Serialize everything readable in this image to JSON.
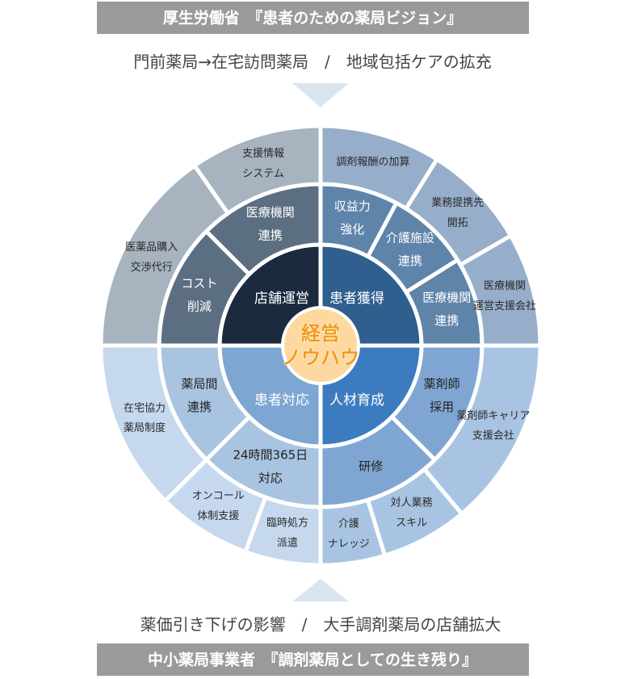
{
  "header": {
    "title": "厚生労働省　『患者のための薬局ビジョン』",
    "subtitle": "門前薬局→在宅訪問薬局　/　地域包括ケアの拡充"
  },
  "center": [
    "経営",
    "ノウハウ"
  ],
  "quadrants": [
    {
      "core": "患者獲得",
      "inner": [
        [
          "収益力",
          "強化"
        ],
        [
          "介護施設",
          "連携"
        ],
        [
          "医療機関",
          "連携"
        ]
      ],
      "outer": [
        [
          "調剤報酬の加算"
        ],
        [
          "業務提携先",
          "開拓"
        ],
        [
          "医療機関",
          "運営支援会社"
        ]
      ]
    },
    {
      "core": "人材育成",
      "inner": [
        [
          "薬剤師",
          "採用"
        ],
        [
          "研修"
        ]
      ],
      "outer": [
        [
          "薬剤師キャリア",
          "支援会社"
        ],
        [
          "対人業務",
          "スキル"
        ],
        [
          "介護",
          "ナレッジ"
        ]
      ]
    },
    {
      "core": "患者対応",
      "inner": [
        [
          "24時間365日",
          "対応"
        ],
        [
          "薬局間",
          "連携"
        ]
      ],
      "outer": [
        [
          "臨時処方",
          "派遣"
        ],
        [
          "オンコール",
          "体制支援"
        ],
        [
          "在宅協力",
          "薬局制度"
        ]
      ]
    },
    {
      "core": "店舗運営",
      "inner": [
        [
          "コスト",
          "削減"
        ],
        [
          "医療機関",
          "連携"
        ]
      ],
      "outer": [
        [
          "医薬品購入",
          "交渉代行"
        ],
        [
          "支援情報",
          "システム"
        ]
      ]
    }
  ],
  "footer": {
    "subtitle": "薬価引き下げの影響　/　大手調剤薬局の店舗拡大",
    "title": "中小薬局事業者　『調剤薬局としての生き残り』"
  }
}
